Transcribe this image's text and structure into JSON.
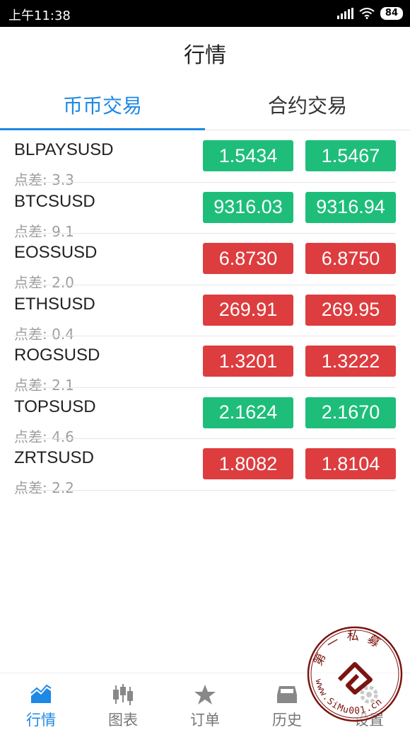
{
  "status_bar": {
    "time": "上午11:38",
    "battery": "84"
  },
  "header": {
    "title": "行情"
  },
  "tabs": [
    {
      "label": "币币交易",
      "active": true
    },
    {
      "label": "合约交易",
      "active": false
    }
  ],
  "quotes": [
    {
      "symbol": "BLPAYSUSD",
      "spread": "点差: 3.3",
      "bid": "1.5434",
      "ask": "1.5467",
      "direction": "up"
    },
    {
      "symbol": "BTCSUSD",
      "spread": "点差: 9.1",
      "bid": "9316.03",
      "ask": "9316.94",
      "direction": "up"
    },
    {
      "symbol": "EOSSUSD",
      "spread": "点差: 2.0",
      "bid": "6.8730",
      "ask": "6.8750",
      "direction": "down"
    },
    {
      "symbol": "ETHSUSD",
      "spread": "点差: 0.4",
      "bid": "269.91",
      "ask": "269.95",
      "direction": "down"
    },
    {
      "symbol": "ROGSUSD",
      "spread": "点差: 2.1",
      "bid": "1.3201",
      "ask": "1.3222",
      "direction": "down"
    },
    {
      "symbol": "TOPSUSD",
      "spread": "点差: 4.6",
      "bid": "2.1624",
      "ask": "2.1670",
      "direction": "up"
    },
    {
      "symbol": "ZRTSUSD",
      "spread": "点差: 2.2",
      "bid": "1.8082",
      "ask": "1.8104",
      "direction": "down"
    }
  ],
  "bottom_nav": [
    {
      "label": "行情",
      "icon": "market-chart-icon",
      "active": true
    },
    {
      "label": "图表",
      "icon": "candlestick-icon",
      "active": false
    },
    {
      "label": "订单",
      "icon": "star-icon",
      "active": false
    },
    {
      "label": "历史",
      "icon": "inbox-icon",
      "active": false
    },
    {
      "label": "设置",
      "icon": "gear-icon",
      "active": false
    }
  ],
  "watermark": {
    "text_top": "第一私募",
    "text_bottom": "www.SiMu001.cn"
  },
  "colors": {
    "accent": "#1e88e5",
    "up": "#1ebe7a",
    "down": "#dd3d3f"
  }
}
